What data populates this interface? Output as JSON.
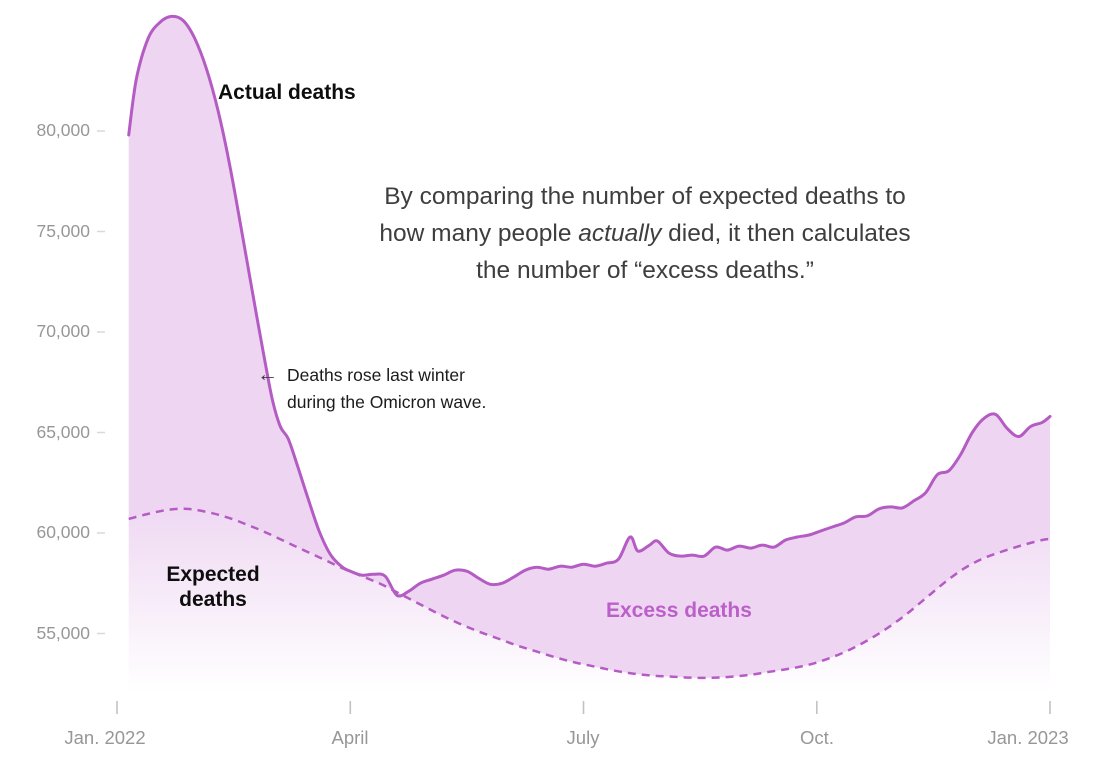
{
  "chart_data": {
    "type": "area",
    "title": "",
    "x_axis": {
      "unit": "months since Jan. 2022",
      "ticks": [
        "Jan. 2022",
        "April",
        "July",
        "Oct.",
        "Jan. 2023"
      ],
      "tick_positions": [
        0,
        3,
        6,
        9,
        12
      ],
      "range": [
        0,
        12
      ]
    },
    "y_axis": {
      "unit": "deaths per week",
      "ticks": [
        "80,000",
        "75,000",
        "70,000",
        "65,000",
        "60,000",
        "55,000"
      ],
      "tick_values": [
        80000,
        75000,
        70000,
        65000,
        60000,
        55000
      ],
      "range": [
        52000,
        86500
      ],
      "grid": false
    },
    "legend_position": "inline-labels",
    "series": [
      {
        "name": "Actual deaths",
        "style": "solid",
        "points": [
          [
            0.15,
            79800
          ],
          [
            0.25,
            82600
          ],
          [
            0.4,
            84600
          ],
          [
            0.55,
            85400
          ],
          [
            0.7,
            85700
          ],
          [
            0.85,
            85500
          ],
          [
            1.0,
            84600
          ],
          [
            1.15,
            83100
          ],
          [
            1.3,
            81000
          ],
          [
            1.45,
            78300
          ],
          [
            1.6,
            75100
          ],
          [
            1.75,
            71800
          ],
          [
            1.9,
            68600
          ],
          [
            2.0,
            66600
          ],
          [
            2.1,
            65300
          ],
          [
            2.2,
            64700
          ],
          [
            2.3,
            63600
          ],
          [
            2.45,
            61800
          ],
          [
            2.6,
            60100
          ],
          [
            2.75,
            58900
          ],
          [
            2.9,
            58300
          ],
          [
            3.0,
            58100
          ],
          [
            3.15,
            57900
          ],
          [
            3.3,
            57950
          ],
          [
            3.45,
            57850
          ],
          [
            3.6,
            56900
          ],
          [
            3.75,
            57100
          ],
          [
            3.9,
            57500
          ],
          [
            4.05,
            57700
          ],
          [
            4.2,
            57900
          ],
          [
            4.35,
            58150
          ],
          [
            4.5,
            58100
          ],
          [
            4.65,
            57750
          ],
          [
            4.8,
            57450
          ],
          [
            4.95,
            57500
          ],
          [
            5.1,
            57800
          ],
          [
            5.25,
            58150
          ],
          [
            5.4,
            58300
          ],
          [
            5.55,
            58200
          ],
          [
            5.7,
            58350
          ],
          [
            5.85,
            58300
          ],
          [
            6.0,
            58450
          ],
          [
            6.15,
            58350
          ],
          [
            6.3,
            58500
          ],
          [
            6.45,
            58700
          ],
          [
            6.6,
            59800
          ],
          [
            6.7,
            59100
          ],
          [
            6.85,
            59400
          ],
          [
            6.95,
            59600
          ],
          [
            7.1,
            59000
          ],
          [
            7.25,
            58850
          ],
          [
            7.4,
            58900
          ],
          [
            7.55,
            58850
          ],
          [
            7.7,
            59300
          ],
          [
            7.85,
            59150
          ],
          [
            8.0,
            59350
          ],
          [
            8.15,
            59250
          ],
          [
            8.3,
            59400
          ],
          [
            8.45,
            59300
          ],
          [
            8.6,
            59650
          ],
          [
            8.75,
            59800
          ],
          [
            8.9,
            59900
          ],
          [
            9.05,
            60100
          ],
          [
            9.2,
            60300
          ],
          [
            9.35,
            60500
          ],
          [
            9.5,
            60800
          ],
          [
            9.65,
            60850
          ],
          [
            9.8,
            61200
          ],
          [
            9.95,
            61300
          ],
          [
            10.1,
            61250
          ],
          [
            10.25,
            61600
          ],
          [
            10.4,
            62000
          ],
          [
            10.55,
            62900
          ],
          [
            10.7,
            63100
          ],
          [
            10.85,
            63900
          ],
          [
            11.0,
            65000
          ],
          [
            11.15,
            65700
          ],
          [
            11.3,
            65900
          ],
          [
            11.45,
            65200
          ],
          [
            11.6,
            64800
          ],
          [
            11.75,
            65300
          ],
          [
            11.9,
            65500
          ],
          [
            12.0,
            65800
          ]
        ]
      },
      {
        "name": "Expected deaths",
        "style": "dashed",
        "points": [
          [
            0.15,
            60700
          ],
          [
            0.4,
            60950
          ],
          [
            0.65,
            61150
          ],
          [
            0.9,
            61200
          ],
          [
            1.15,
            61050
          ],
          [
            1.4,
            60800
          ],
          [
            1.65,
            60450
          ],
          [
            1.9,
            60050
          ],
          [
            2.15,
            59600
          ],
          [
            2.4,
            59150
          ],
          [
            2.65,
            58700
          ],
          [
            2.9,
            58250
          ],
          [
            3.15,
            57850
          ],
          [
            3.4,
            57450
          ],
          [
            3.65,
            56950
          ],
          [
            3.9,
            56450
          ],
          [
            4.15,
            55950
          ],
          [
            4.4,
            55500
          ],
          [
            4.65,
            55100
          ],
          [
            4.9,
            54750
          ],
          [
            5.15,
            54400
          ],
          [
            5.4,
            54100
          ],
          [
            5.65,
            53800
          ],
          [
            5.9,
            53550
          ],
          [
            6.15,
            53350
          ],
          [
            6.4,
            53150
          ],
          [
            6.65,
            53000
          ],
          [
            6.9,
            52900
          ],
          [
            7.15,
            52850
          ],
          [
            7.4,
            52800
          ],
          [
            7.65,
            52800
          ],
          [
            7.9,
            52850
          ],
          [
            8.15,
            52950
          ],
          [
            8.4,
            53100
          ],
          [
            8.65,
            53250
          ],
          [
            8.9,
            53450
          ],
          [
            9.15,
            53750
          ],
          [
            9.4,
            54150
          ],
          [
            9.65,
            54650
          ],
          [
            9.9,
            55250
          ],
          [
            10.15,
            55950
          ],
          [
            10.4,
            56750
          ],
          [
            10.65,
            57550
          ],
          [
            10.9,
            58250
          ],
          [
            11.15,
            58750
          ],
          [
            11.4,
            59100
          ],
          [
            11.65,
            59400
          ],
          [
            11.9,
            59650
          ],
          [
            12.0,
            59700
          ]
        ]
      }
    ],
    "area_between_series_label": "Excess deaths"
  },
  "labels": {
    "actual": "Actual deaths",
    "expected_line1": "Expected",
    "expected_line2": "deaths",
    "excess": "Excess deaths"
  },
  "annotations": {
    "explainer": {
      "line1": "By comparing the number of expected deaths to",
      "line2_pre": "how many people ",
      "line2_italic": "actually",
      "line2_post": " died, it then calculates",
      "line3": "the number of “excess deaths.”"
    },
    "omicron": {
      "arrow": "←",
      "line1": "Deaths rose last winter",
      "line2": "during the Omicron wave."
    }
  },
  "colors": {
    "line": "#b45cc3",
    "fill_between": "#eed6f2",
    "excess_label": "#bb5fc9",
    "axis_text": "#979797",
    "tick_mark": "#c2c2c2",
    "explainer_text": "#3e3e3e",
    "annotation_text": "#1b1b1b",
    "series_label_text": "#0e0e0e"
  }
}
